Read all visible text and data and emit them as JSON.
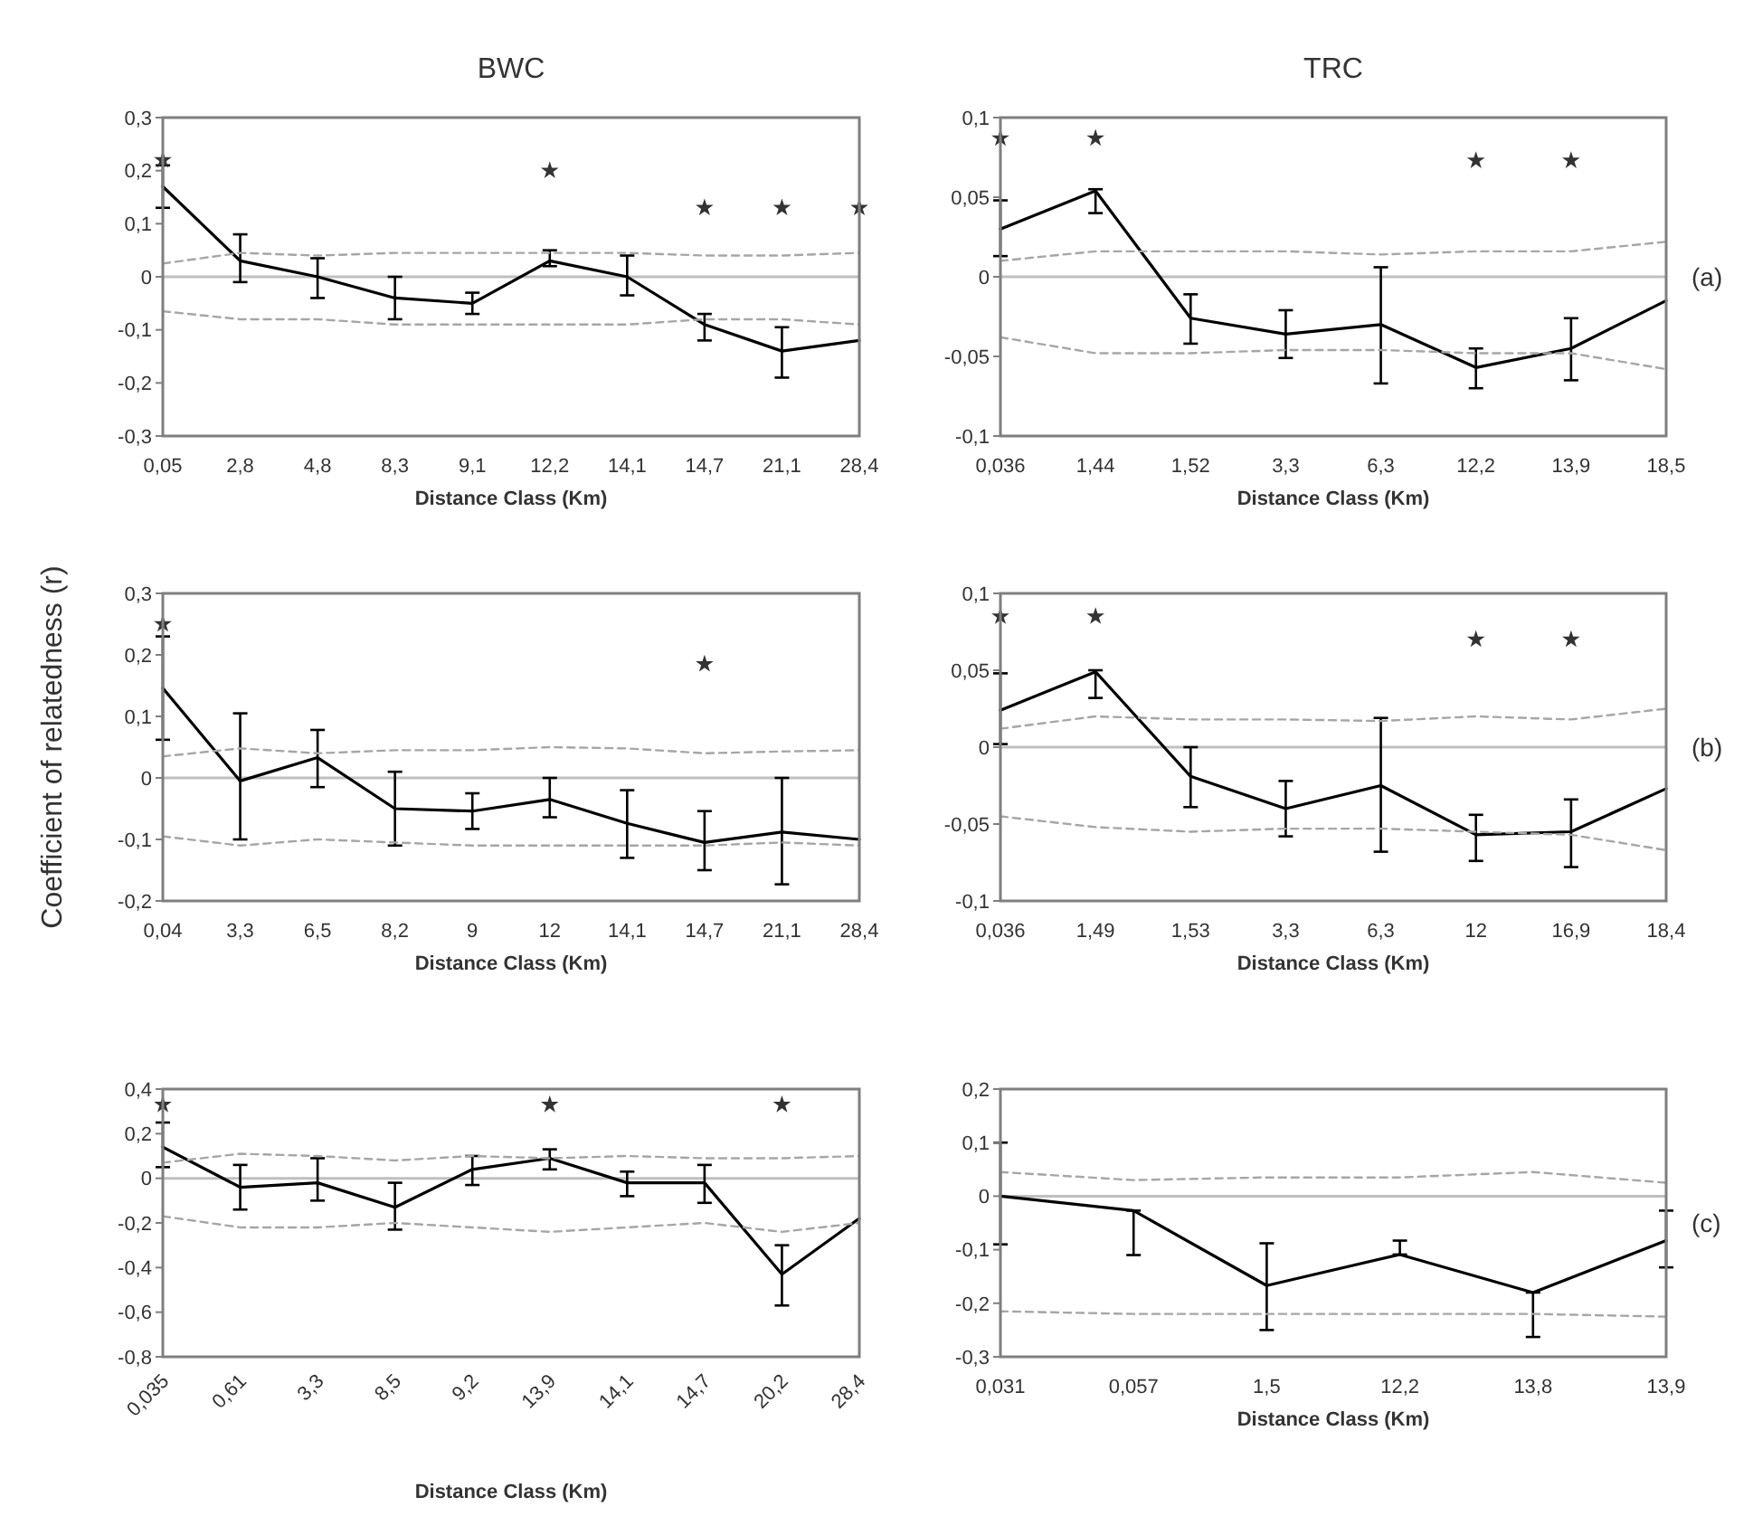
{
  "chart_data": [
    {
      "type": "line",
      "title": "BWC",
      "xlabel": "Distance Class (Km)",
      "categories": [
        "0,05",
        "2,8",
        "4,8",
        "8,3",
        "9,1",
        "12,2",
        "14,1",
        "14,7",
        "21,1",
        "28,4"
      ],
      "ylim": [
        -0.3,
        0.3
      ],
      "yticks": [
        {
          "value": -0.3,
          "label": "-0,3"
        },
        {
          "value": -0.2,
          "label": "-0,2"
        },
        {
          "value": -0.1,
          "label": "-0,1"
        },
        {
          "value": 0,
          "label": "0"
        },
        {
          "value": 0.1,
          "label": "0,1"
        },
        {
          "value": 0.2,
          "label": "0,2"
        },
        {
          "value": 0.3,
          "label": "0,3"
        }
      ],
      "marker": "none",
      "ref_lines": [
        {
          "axis": "y",
          "value": 0,
          "color": "#bfbfbf"
        }
      ],
      "series": [
        {
          "color": "#000000",
          "values": [
            0.17,
            0.03,
            0.0,
            -0.04,
            -0.05,
            0.03,
            0.0,
            -0.09,
            -0.14,
            -0.12
          ],
          "errors": [
            [
              0.13,
              0.21
            ],
            [
              -0.01,
              0.08
            ],
            [
              -0.04,
              0.035
            ],
            [
              -0.08,
              0.0
            ],
            [
              -0.07,
              -0.03
            ],
            [
              0.02,
              0.05
            ],
            [
              -0.035,
              0.04
            ],
            [
              -0.12,
              -0.07
            ],
            [
              -0.19,
              -0.095
            ],
            null
          ]
        },
        {
          "color": "#a6a6a6",
          "line_style": "dashed",
          "values": [
            0.025,
            0.045,
            0.04,
            0.045,
            0.045,
            0.045,
            0.045,
            0.04,
            0.04,
            0.045
          ]
        },
        {
          "color": "#a6a6a6",
          "line_style": "dashed",
          "values": [
            -0.065,
            -0.08,
            -0.08,
            -0.09,
            -0.09,
            -0.09,
            -0.09,
            -0.08,
            -0.08,
            -0.09
          ]
        },
        {
          "type": "scatter",
          "marker": "star",
          "color": "#333333",
          "x": [
            "0,05",
            "12,2",
            "14,7",
            "21,1",
            "28,4"
          ],
          "values": [
            0.22,
            0.2,
            0.13,
            0.13,
            0.13
          ]
        }
      ]
    },
    {
      "type": "line",
      "title": "TRC",
      "xlabel": "Distance Class (Km)",
      "categories": [
        "0,036",
        "1,44",
        "1,52",
        "3,3",
        "6,3",
        "12,2",
        "13,9",
        "18,5"
      ],
      "ylim": [
        -0.1,
        0.1
      ],
      "yticks": [
        {
          "value": -0.1,
          "label": "-0,1"
        },
        {
          "value": -0.05,
          "label": "-0,05"
        },
        {
          "value": 0,
          "label": "0"
        },
        {
          "value": 0.05,
          "label": "0,05"
        },
        {
          "value": 0.1,
          "label": "0,1"
        }
      ],
      "marker": "none",
      "ref_lines": [
        {
          "axis": "y",
          "value": 0,
          "color": "#bfbfbf"
        }
      ],
      "series": [
        {
          "color": "#000000",
          "values": [
            0.03,
            0.054,
            -0.026,
            -0.036,
            -0.03,
            -0.057,
            -0.045,
            -0.015
          ],
          "errors": [
            [
              0.013,
              0.048
            ],
            [
              0.04,
              0.055
            ],
            [
              -0.042,
              -0.011
            ],
            [
              -0.051,
              -0.021
            ],
            [
              -0.067,
              0.006
            ],
            [
              -0.07,
              -0.045
            ],
            [
              -0.065,
              -0.026
            ],
            null
          ]
        },
        {
          "color": "#a6a6a6",
          "line_style": "dashed",
          "values": [
            0.01,
            0.016,
            0.016,
            0.016,
            0.014,
            0.016,
            0.016,
            0.022
          ]
        },
        {
          "color": "#a6a6a6",
          "line_style": "dashed",
          "values": [
            -0.038,
            -0.048,
            -0.048,
            -0.046,
            -0.046,
            -0.048,
            -0.048,
            -0.058
          ]
        },
        {
          "type": "scatter",
          "marker": "star",
          "color": "#333333",
          "x": [
            "0,036",
            "1,44",
            "12,2",
            "13,9"
          ],
          "values": [
            0.087,
            0.087,
            0.073,
            0.073
          ]
        }
      ],
      "annotations": [
        "(a)"
      ]
    },
    {
      "type": "line",
      "xlabel": "Distance Class (Km)",
      "ylabel": "Coefficient of relatedness (r)",
      "categories": [
        "0,04",
        "3,3",
        "6,5",
        "8,2",
        "9",
        "12",
        "14,1",
        "14,7",
        "21,1",
        "28,4"
      ],
      "ylim": [
        -0.2,
        0.3
      ],
      "yticks": [
        {
          "value": -0.2,
          "label": "-0,2"
        },
        {
          "value": -0.1,
          "label": "-0,1"
        },
        {
          "value": 0,
          "label": "0"
        },
        {
          "value": 0.1,
          "label": "0,1"
        },
        {
          "value": 0.2,
          "label": "0,2"
        },
        {
          "value": 0.3,
          "label": "0,3"
        }
      ],
      "marker": "none",
      "ref_lines": [
        {
          "axis": "y",
          "value": 0,
          "color": "#bfbfbf"
        }
      ],
      "series": [
        {
          "color": "#000000",
          "values": [
            0.146,
            -0.005,
            0.033,
            -0.05,
            -0.054,
            -0.035,
            -0.074,
            -0.105,
            -0.088,
            -0.1
          ],
          "errors": [
            [
              0.062,
              0.23
            ],
            [
              -0.1,
              0.105
            ],
            [
              -0.015,
              0.078
            ],
            [
              -0.11,
              0.01
            ],
            [
              -0.083,
              -0.025
            ],
            [
              -0.064,
              0.0
            ],
            [
              -0.13,
              -0.02
            ],
            [
              -0.15,
              -0.054
            ],
            [
              -0.173,
              0.0
            ],
            null
          ]
        },
        {
          "color": "#a6a6a6",
          "line_style": "dashed",
          "values": [
            0.035,
            0.048,
            0.04,
            0.045,
            0.045,
            0.05,
            0.048,
            0.04,
            0.043,
            0.045
          ]
        },
        {
          "color": "#a6a6a6",
          "line_style": "dashed",
          "values": [
            -0.095,
            -0.11,
            -0.1,
            -0.105,
            -0.11,
            -0.11,
            -0.11,
            -0.11,
            -0.105,
            -0.11
          ]
        },
        {
          "type": "scatter",
          "marker": "star",
          "color": "#333333",
          "x": [
            "0,04",
            "14,7"
          ],
          "values": [
            0.25,
            0.185
          ]
        }
      ]
    },
    {
      "type": "line",
      "xlabel": "Distance Class (Km)",
      "categories": [
        "0,036",
        "1,49",
        "1,53",
        "3,3",
        "6,3",
        "12",
        "16,9",
        "18,4"
      ],
      "ylim": [
        -0.1,
        0.1
      ],
      "yticks": [
        {
          "value": -0.1,
          "label": "-0,1"
        },
        {
          "value": -0.05,
          "label": "-0,05"
        },
        {
          "value": 0,
          "label": "0"
        },
        {
          "value": 0.05,
          "label": "0,05"
        },
        {
          "value": 0.1,
          "label": "0,1"
        }
      ],
      "marker": "none",
      "ref_lines": [
        {
          "axis": "y",
          "value": 0,
          "color": "#bfbfbf"
        }
      ],
      "series": [
        {
          "color": "#000000",
          "values": [
            0.024,
            0.049,
            -0.019,
            -0.04,
            -0.025,
            -0.057,
            -0.055,
            -0.027
          ],
          "errors": [
            [
              0.002,
              0.048
            ],
            [
              0.032,
              0.05
            ],
            [
              -0.039,
              0.0
            ],
            [
              -0.058,
              -0.022
            ],
            [
              -0.068,
              0.019
            ],
            [
              -0.074,
              -0.044
            ],
            [
              -0.078,
              -0.034
            ],
            null
          ]
        },
        {
          "color": "#a6a6a6",
          "line_style": "dashed",
          "values": [
            0.012,
            0.02,
            0.018,
            0.018,
            0.017,
            0.02,
            0.018,
            0.025
          ]
        },
        {
          "color": "#a6a6a6",
          "line_style": "dashed",
          "values": [
            -0.045,
            -0.052,
            -0.055,
            -0.053,
            -0.053,
            -0.055,
            -0.057,
            -0.067
          ]
        },
        {
          "type": "scatter",
          "marker": "star",
          "color": "#333333",
          "x": [
            "0,036",
            "1,49",
            "12",
            "16,9"
          ],
          "values": [
            0.085,
            0.085,
            0.07,
            0.07
          ]
        }
      ],
      "annotations": [
        "(b)"
      ]
    },
    {
      "type": "line",
      "xlabel": "Distance Class (Km)",
      "categories": [
        "0,035",
        "0,61",
        "3,3",
        "8,5",
        "9,2",
        "13,9",
        "14,1",
        "14,7",
        "20,2",
        "28,4"
      ],
      "ylim": [
        -0.8,
        0.4
      ],
      "yticks": [
        {
          "value": -0.8,
          "label": "-0,8"
        },
        {
          "value": -0.6,
          "label": "-0,6"
        },
        {
          "value": -0.4,
          "label": "-0,4"
        },
        {
          "value": -0.2,
          "label": "-0,2"
        },
        {
          "value": 0,
          "label": "0"
        },
        {
          "value": 0.2,
          "label": "0,2"
        },
        {
          "value": 0.4,
          "label": "0,4"
        }
      ],
      "marker": "none",
      "ref_lines": [
        {
          "axis": "y",
          "value": 0,
          "color": "#bfbfbf"
        }
      ],
      "series": [
        {
          "color": "#000000",
          "values": [
            0.14,
            -0.04,
            -0.02,
            -0.13,
            0.04,
            0.09,
            -0.02,
            -0.02,
            -0.43,
            -0.18
          ],
          "errors": [
            [
              0.05,
              0.25
            ],
            [
              -0.14,
              0.06
            ],
            [
              -0.1,
              0.09
            ],
            [
              -0.23,
              -0.02
            ],
            [
              -0.03,
              0.1
            ],
            [
              0.04,
              0.13
            ],
            [
              -0.08,
              0.03
            ],
            [
              -0.11,
              0.06
            ],
            [
              -0.57,
              -0.3
            ],
            null
          ]
        },
        {
          "color": "#a6a6a6",
          "line_style": "dashed",
          "values": [
            0.07,
            0.11,
            0.1,
            0.08,
            0.1,
            0.09,
            0.1,
            0.09,
            0.09,
            0.1
          ]
        },
        {
          "color": "#a6a6a6",
          "line_style": "dashed",
          "values": [
            -0.17,
            -0.22,
            -0.22,
            -0.2,
            -0.22,
            -0.24,
            -0.22,
            -0.2,
            -0.24,
            -0.2
          ]
        },
        {
          "type": "scatter",
          "marker": "star",
          "color": "#333333",
          "x": [
            "0,035",
            "13,9",
            "20,2"
          ],
          "values": [
            0.33,
            0.33,
            0.33
          ]
        }
      ]
    },
    {
      "type": "line",
      "xlabel": "Distance Class (Km)",
      "categories": [
        "0,031",
        "0,057",
        "1,5",
        "12,2",
        "13,8",
        "13,9"
      ],
      "ylim": [
        -0.3,
        0.2
      ],
      "yticks": [
        {
          "value": -0.3,
          "label": "-0,3"
        },
        {
          "value": -0.2,
          "label": "-0,2"
        },
        {
          "value": -0.1,
          "label": "-0,1"
        },
        {
          "value": 0,
          "label": "0"
        },
        {
          "value": 0.1,
          "label": "0,1"
        },
        {
          "value": 0.2,
          "label": "0,2"
        }
      ],
      "marker": "none",
      "ref_lines": [
        {
          "axis": "y",
          "value": 0,
          "color": "#bfbfbf"
        }
      ],
      "series": [
        {
          "color": "#000000",
          "values": [
            0.0,
            -0.027,
            -0.167,
            -0.109,
            -0.18,
            -0.083
          ],
          "errors": [
            [
              -0.09,
              0.1
            ],
            [
              -0.11,
              -0.027
            ],
            [
              -0.25,
              -0.088
            ],
            [
              -0.109,
              -0.083
            ],
            [
              -0.263,
              -0.18
            ],
            [
              -0.133,
              -0.027
            ]
          ]
        },
        {
          "color": "#a6a6a6",
          "line_style": "dashed",
          "values": [
            0.045,
            0.03,
            0.035,
            0.035,
            0.045,
            0.025
          ]
        },
        {
          "color": "#a6a6a6",
          "line_style": "dashed",
          "values": [
            -0.215,
            -0.22,
            -0.22,
            -0.22,
            -0.22,
            -0.225
          ]
        }
      ],
      "annotations": [
        "(c)"
      ]
    }
  ]
}
